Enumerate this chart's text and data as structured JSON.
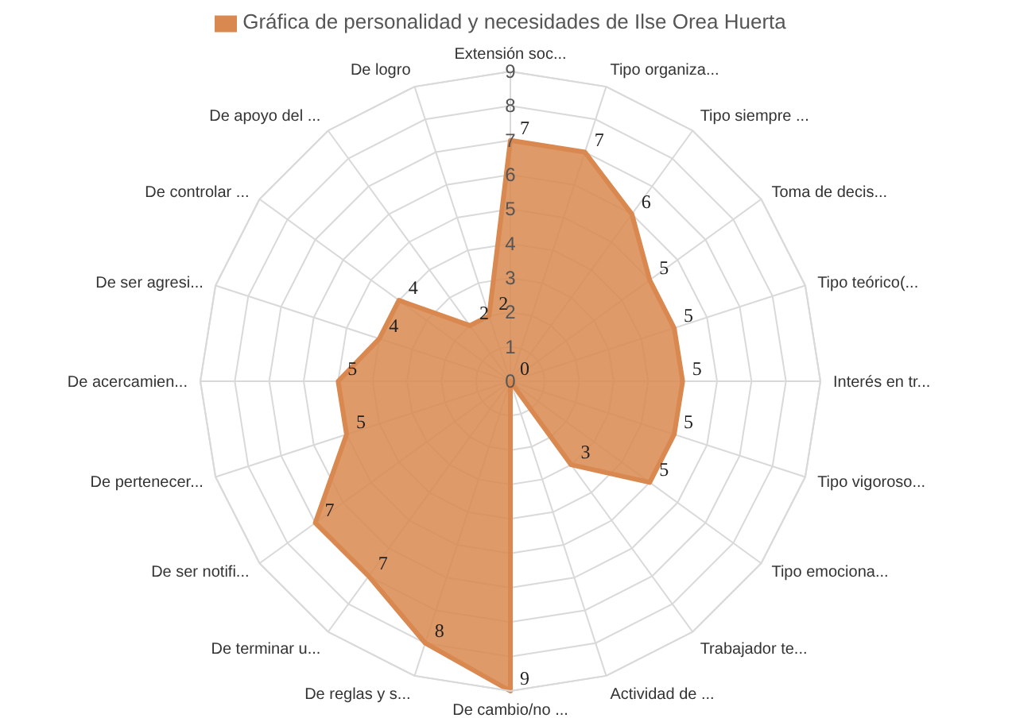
{
  "chart_data": {
    "type": "radar",
    "categories": [
      "Extensión soc...",
      "Tipo organiza...",
      "Tipo siempre ...",
      "Toma de decis...",
      "Tipo teórico(...",
      "Interés en tr...",
      "Tipo vigoroso...",
      "Tipo emociona...",
      "Trabajador te...",
      "Actividad de ...",
      "De cambio/no ...",
      "De reglas y s...",
      "De terminar u...",
      "De ser notifi...",
      "De pertenecer...",
      "De acercamien...",
      "De ser agresi...",
      "De controlar ...",
      "De apoyo del ...",
      "De logro"
    ],
    "series": [
      {
        "name": "Gráfica de personalidad y necesidades de Ilse Orea Huerta",
        "color": "#d9884f",
        "values": [
          7,
          7,
          6,
          5,
          5,
          5,
          5,
          5,
          3,
          0,
          9,
          8,
          7,
          7,
          5,
          5,
          4,
          4,
          2,
          2
        ]
      }
    ],
    "ylim": [
      0,
      9
    ],
    "yticks": [
      0,
      1,
      2,
      3,
      4,
      5,
      6,
      7,
      8,
      9
    ],
    "grid": true,
    "legend": "top",
    "data_labels": true
  }
}
